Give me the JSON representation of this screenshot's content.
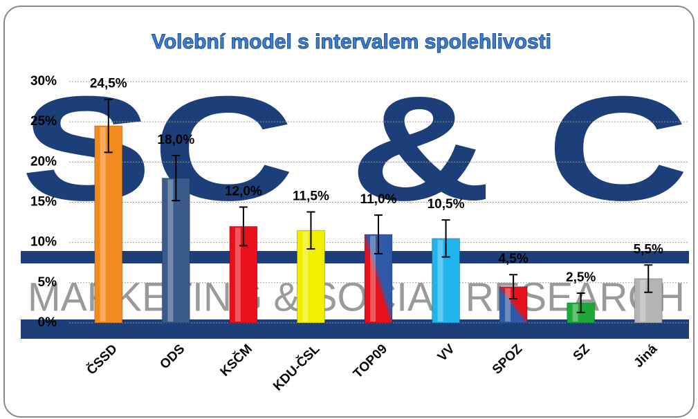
{
  "chart_data": {
    "type": "bar",
    "title": "Volební model s intervalem spolehlivosti",
    "watermark": [
      "SC & C",
      "MARKETING & SOCIAL RESEARCH"
    ],
    "categories": [
      "ČSSD",
      "ODS",
      "KSČM",
      "KDU-ČSL",
      "TOP09",
      "VV",
      "SPOZ",
      "SZ",
      "Jiná"
    ],
    "values": [
      24.5,
      18.0,
      12.0,
      11.5,
      11.0,
      10.5,
      4.5,
      2.5,
      5.5
    ],
    "value_labels": [
      "24,5%",
      "18,0%",
      "12,0%",
      "11,5%",
      "11,0%",
      "10,5%",
      "4,5%",
      "2,5%",
      "5,5%"
    ],
    "errors": [
      3.3,
      2.8,
      2.4,
      2.3,
      2.4,
      2.3,
      1.5,
      1.2,
      1.7
    ],
    "colors": [
      "#f28a1e",
      "#3a5a8c",
      "#e8101a",
      "#f2ee00",
      [
        "#e8101a",
        "#2e5aa8"
      ],
      "#1fb4ec",
      [
        "#2e5aa8",
        "#e8101a"
      ],
      "#1fa83a",
      "#b4b4b4"
    ],
    "ylim": [
      0,
      30
    ],
    "yticks": [
      {
        "value": 0,
        "label": "0%"
      },
      {
        "value": 5,
        "label": "5%"
      },
      {
        "value": 10,
        "label": "10%"
      },
      {
        "value": 15,
        "label": "15%"
      },
      {
        "value": 20,
        "label": "20%"
      },
      {
        "value": 25,
        "label": "25%"
      },
      {
        "value": 30,
        "label": "30%"
      }
    ],
    "grid": true
  }
}
